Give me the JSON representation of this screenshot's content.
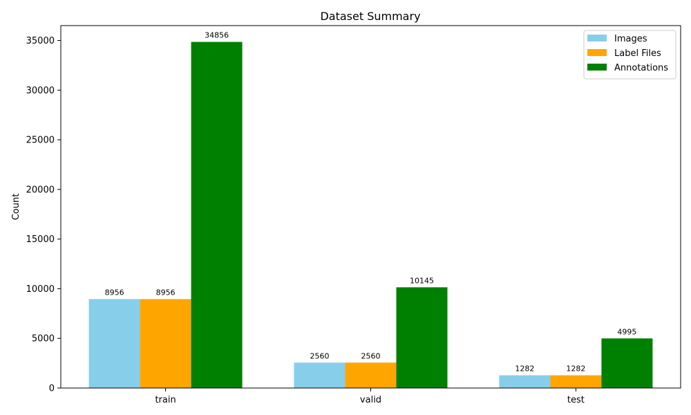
{
  "chart_data": {
    "type": "bar",
    "title": "Dataset Summary",
    "xlabel": "",
    "ylabel": "Count",
    "categories": [
      "train",
      "valid",
      "test"
    ],
    "ylim": [
      0,
      36500
    ],
    "yticks": [
      0,
      5000,
      10000,
      15000,
      20000,
      25000,
      30000,
      35000
    ],
    "grid": false,
    "legend_position": "top-right",
    "series": [
      {
        "name": "Images",
        "color": "#87CEEB",
        "values": [
          8956,
          2560,
          1282
        ]
      },
      {
        "name": "Label Files",
        "color": "#FFA500",
        "values": [
          8956,
          2560,
          1282
        ]
      },
      {
        "name": "Annotations",
        "color": "#008000",
        "values": [
          34856,
          10145,
          4995
        ]
      }
    ]
  }
}
